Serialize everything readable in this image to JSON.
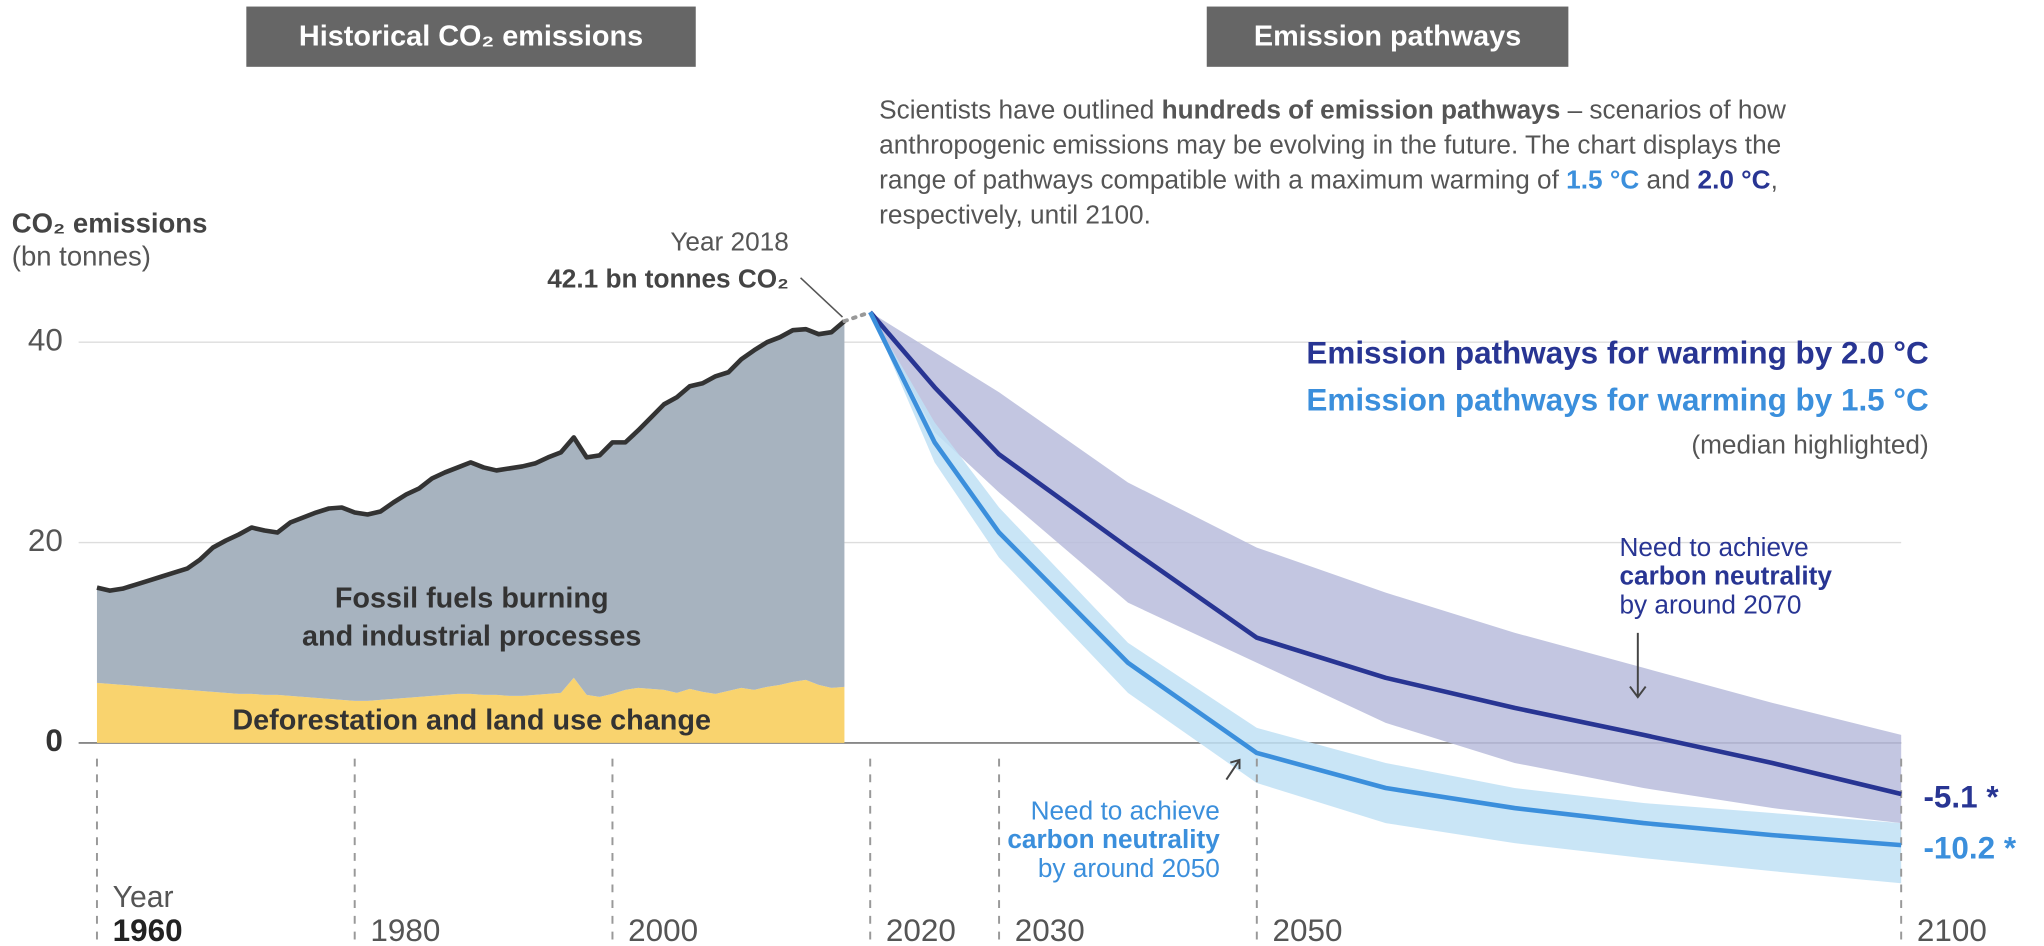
{
  "chart_data": {
    "type": "area",
    "panel_titles": [
      "Historical CO₂ emissions",
      "Emission pathways"
    ],
    "paragraph": [
      [
        {
          "text": "Scientists have outlined "
        },
        {
          "text": "hundreds of emission pathways",
          "bold": true
        },
        {
          "text": " – scenarios of how"
        }
      ],
      [
        {
          "text": "anthropogenic emissions may be evolving in the future. The chart displays the"
        }
      ],
      [
        {
          "text": "range of pathways compatible with a maximum warming of "
        },
        {
          "text": "1.5 °C",
          "bold": true,
          "color": "#3b8fdc"
        },
        {
          "text": " and "
        },
        {
          "text": "2.0 °C",
          "bold": true,
          "color": "#283593"
        },
        {
          "text": ","
        }
      ],
      [
        {
          "text": "respectively, until 2100."
        }
      ]
    ],
    "ylabel": [
      "CO₂ emissions",
      "(bn tonnes)"
    ],
    "xlabel": "Year",
    "xlim": [
      1960,
      2100
    ],
    "ylim": [
      -17,
      48
    ],
    "xticks": [
      1960,
      1980,
      2000,
      2020,
      2030,
      2050,
      2100
    ],
    "yticks": [
      0,
      20,
      40
    ],
    "grid": true,
    "x": [
      1960,
      1961,
      1962,
      1963,
      1964,
      1965,
      1966,
      1967,
      1968,
      1969,
      1970,
      1971,
      1972,
      1973,
      1974,
      1975,
      1976,
      1977,
      1978,
      1979,
      1980,
      1981,
      1982,
      1983,
      1984,
      1985,
      1986,
      1987,
      1988,
      1989,
      1990,
      1991,
      1992,
      1993,
      1994,
      1995,
      1996,
      1997,
      1998,
      1999,
      2000,
      2001,
      2002,
      2003,
      2004,
      2005,
      2006,
      2007,
      2008,
      2009,
      2010,
      2011,
      2012,
      2013,
      2014,
      2015,
      2016,
      2017,
      2018
    ],
    "series": [
      {
        "label": [
          "Deforestation and land use change"
        ],
        "color": "#f9d36e",
        "values": [
          6.0,
          5.9,
          5.8,
          5.7,
          5.6,
          5.5,
          5.4,
          5.3,
          5.2,
          5.1,
          5.0,
          4.9,
          4.9,
          4.8,
          4.8,
          4.7,
          4.6,
          4.5,
          4.4,
          4.3,
          4.2,
          4.2,
          4.3,
          4.4,
          4.5,
          4.6,
          4.7,
          4.8,
          4.9,
          4.9,
          4.8,
          4.8,
          4.7,
          4.7,
          4.8,
          4.9,
          5.0,
          6.5,
          4.8,
          4.6,
          4.9,
          5.3,
          5.5,
          5.4,
          5.3,
          5.0,
          5.4,
          5.1,
          4.9,
          5.2,
          5.5,
          5.3,
          5.6,
          5.8,
          6.1,
          6.3,
          5.8,
          5.5,
          5.6
        ]
      },
      {
        "label": [
          "Fossil fuels burning",
          "and industrial processes"
        ],
        "color": "#a7b3bf",
        "line_color": "#333333",
        "values": [
          9.5,
          9.3,
          9.6,
          10.1,
          10.6,
          11.1,
          11.6,
          12.1,
          13.1,
          14.4,
          15.2,
          15.9,
          16.6,
          16.4,
          16.2,
          17.3,
          17.9,
          18.5,
          19.0,
          19.2,
          18.8,
          18.6,
          18.8,
          19.6,
          20.3,
          20.8,
          21.7,
          22.2,
          22.6,
          23.1,
          22.7,
          22.4,
          22.7,
          22.9,
          23.1,
          23.6,
          24.0,
          24.0,
          23.7,
          24.1,
          25.1,
          24.7,
          25.7,
          27.1,
          28.5,
          29.5,
          30.2,
          30.8,
          31.7,
          31.8,
          32.8,
          33.9,
          34.4,
          34.7,
          35.1,
          35.0,
          35.0,
          35.5,
          36.5
        ]
      }
    ],
    "annotation_2018": [
      "Year 2018",
      "42.1 bn tonnes CO₂"
    ],
    "pathways": {
      "x": [
        2020,
        2025,
        2030,
        2040,
        2050,
        2060,
        2070,
        2080,
        2090,
        2100
      ],
      "note": "(median highlighted)",
      "series": [
        {
          "name": "Emission pathways for warming by 2.0 °C",
          "color": "#283593",
          "band_color": "#b9bcdc",
          "values": [
            43,
            35.5,
            28.8,
            19.5,
            10.5,
            6.5,
            3.5,
            0.8,
            -2.0,
            -5.1
          ],
          "upper": [
            43,
            39,
            35,
            26,
            19.5,
            15,
            11,
            7.5,
            4,
            0.8
          ],
          "lower": [
            43,
            31,
            25,
            14,
            8,
            2,
            -2,
            -4.5,
            -6.5,
            -8
          ],
          "value_label": "-5.1 *",
          "neutrality": [
            "Need to achieve",
            "carbon neutrality",
            "by around 2070"
          ]
        },
        {
          "name": "Emission pathways for warming by 1.5 °C",
          "color": "#3b8fdc",
          "band_color": "#bfe0f5",
          "values": [
            43,
            30,
            21,
            8,
            -1,
            -4.5,
            -6.5,
            -8,
            -9.2,
            -10.2
          ],
          "upper": [
            43,
            32,
            23.5,
            10,
            1.5,
            -2,
            -4.5,
            -6,
            -7,
            -8
          ],
          "lower": [
            43,
            28,
            18.5,
            5,
            -4,
            -8,
            -10,
            -11.5,
            -12.8,
            -14
          ],
          "value_label": "-10.2 *",
          "neutrality": [
            "Need to achieve",
            "carbon neutrality",
            "by around 2050"
          ]
        }
      ]
    }
  }
}
